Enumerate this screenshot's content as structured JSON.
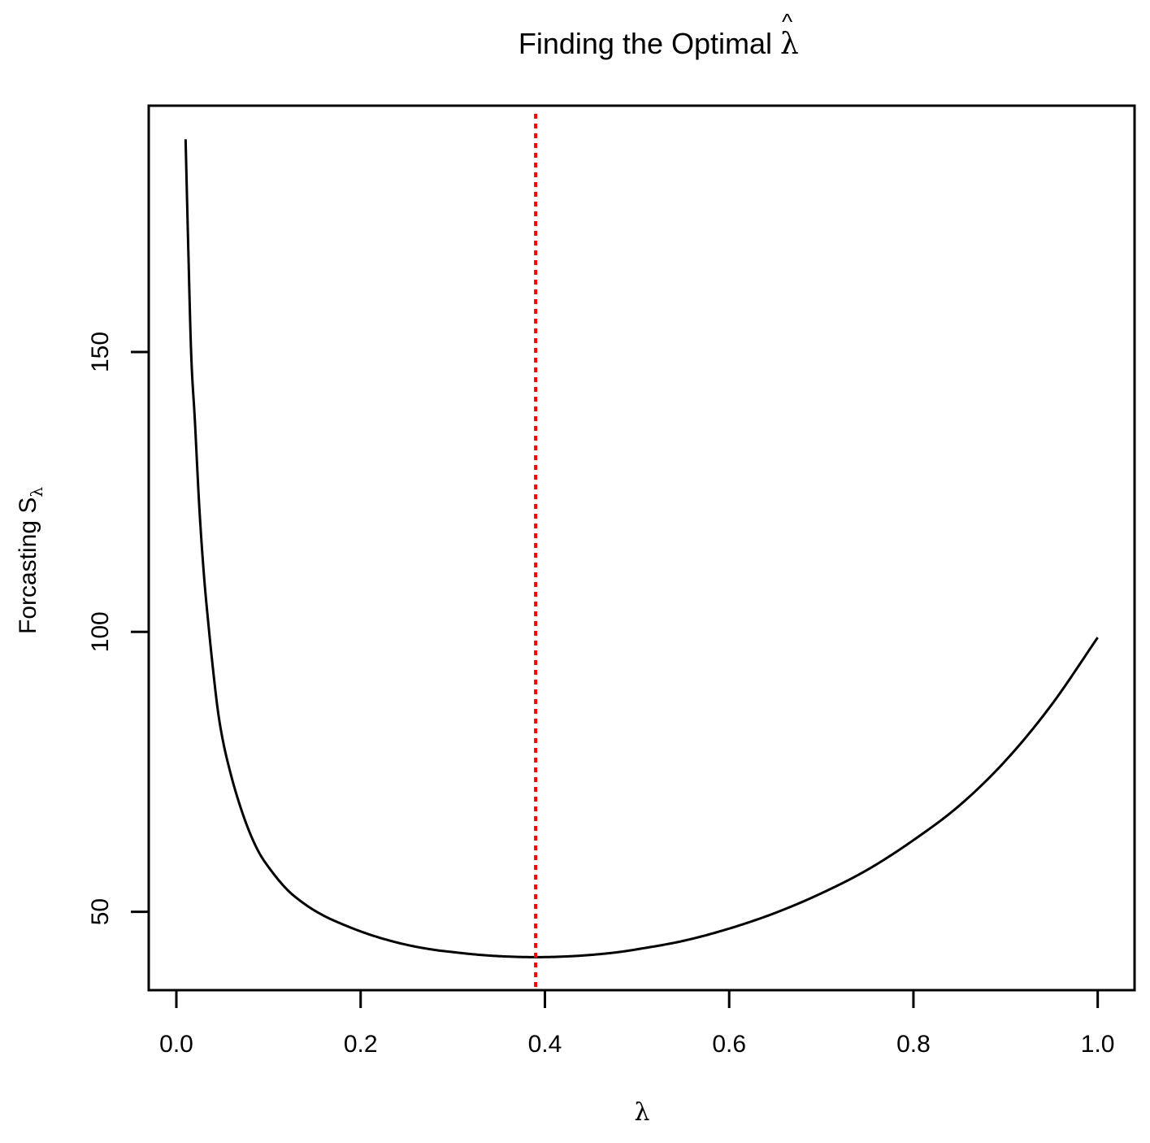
{
  "chart_data": {
    "type": "line",
    "title": "Finding the Optimal",
    "title_symbol": "λ",
    "title_symbol_hat": "^",
    "xlabel": "λ",
    "ylabel": "Forcasting S",
    "ylabel_subscript": "λ",
    "xlim": [
      -0.03,
      1.04
    ],
    "ylim": [
      36,
      194
    ],
    "x_ticks": [
      0.0,
      0.2,
      0.4,
      0.6,
      0.8,
      1.0
    ],
    "x_tick_labels": [
      "0.0",
      "0.2",
      "0.4",
      "0.6",
      "0.8",
      "1.0"
    ],
    "y_ticks": [
      50,
      100,
      150
    ],
    "y_tick_labels": [
      "50",
      "100",
      "150"
    ],
    "grid": false,
    "series": [
      {
        "color": "#000000",
        "x": [
          0.01,
          0.013,
          0.016,
          0.02,
          0.025,
          0.03,
          0.035,
          0.04,
          0.045,
          0.05,
          0.06,
          0.07,
          0.08,
          0.09,
          0.1,
          0.12,
          0.14,
          0.16,
          0.18,
          0.2,
          0.22,
          0.25,
          0.28,
          0.3,
          0.33,
          0.36,
          0.39,
          0.42,
          0.45,
          0.48,
          0.5,
          0.55,
          0.6,
          0.65,
          0.7,
          0.75,
          0.8,
          0.85,
          0.9,
          0.95,
          1.0
        ],
        "y": [
          188,
          168,
          150,
          138,
          122,
          110,
          101,
          93,
          86,
          81,
          74,
          68.5,
          64,
          60.5,
          58,
          54,
          51.3,
          49.3,
          47.8,
          46.5,
          45.4,
          44.1,
          43.2,
          42.8,
          42.3,
          42.0,
          41.9,
          42.0,
          42.3,
          42.8,
          43.3,
          44.8,
          47.0,
          49.8,
          53.3,
          57.5,
          62.8,
          69.0,
          77.0,
          87.0,
          99.0
        ]
      }
    ],
    "reference_line": {
      "orientation": "vertical",
      "x": 0.39,
      "color": "#ff0000",
      "style": "dotted"
    }
  }
}
